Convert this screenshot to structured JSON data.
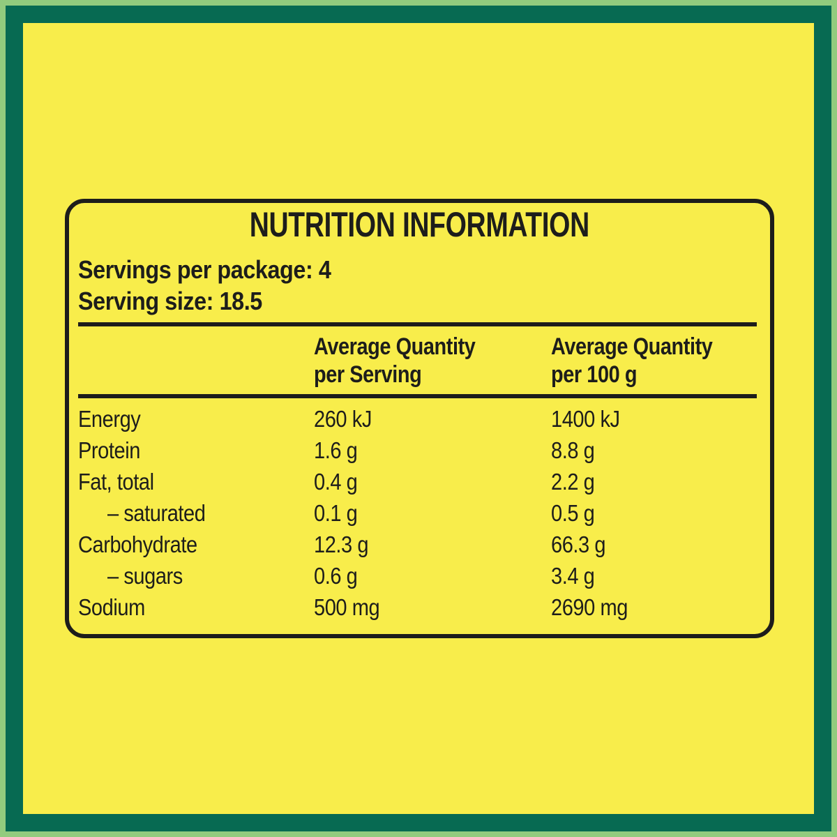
{
  "panel": {
    "title": "NUTRITION INFORMATION",
    "servings_per_package": "Servings per package: 4",
    "serving_size": "Serving size: 18.5"
  },
  "table": {
    "headers": [
      {
        "line1": "Average Quantity",
        "line2": "per Serving"
      },
      {
        "line1": "Average Quantity",
        "line2": "per 100 g"
      }
    ],
    "rows": [
      {
        "label": "Energy",
        "per_serving": "260 kJ",
        "per_100g": "1400 kJ"
      },
      {
        "label": "Protein",
        "per_serving": "1.6 g",
        "per_100g": "8.8 g"
      },
      {
        "label": "Fat, total",
        "per_serving": "0.4 g",
        "per_100g": "2.2 g"
      },
      {
        "label": "– saturated",
        "per_serving": "0.1 g",
        "per_100g": "0.5 g"
      },
      {
        "label": "Carbohydrate",
        "per_serving": "12.3 g",
        "per_100g": "66.3 g"
      },
      {
        "label": "– sugars",
        "per_serving": "0.6 g",
        "per_100g": "3.4 g"
      },
      {
        "label": "Sodium",
        "per_serving": "500 mg",
        "per_100g": "2690 mg"
      }
    ]
  },
  "colors": {
    "background_yellow": "#F8ED4B",
    "frame_dark_green": "#076A52",
    "outer_light_green": "#92CB7E",
    "text_black": "#1D1D1B"
  }
}
